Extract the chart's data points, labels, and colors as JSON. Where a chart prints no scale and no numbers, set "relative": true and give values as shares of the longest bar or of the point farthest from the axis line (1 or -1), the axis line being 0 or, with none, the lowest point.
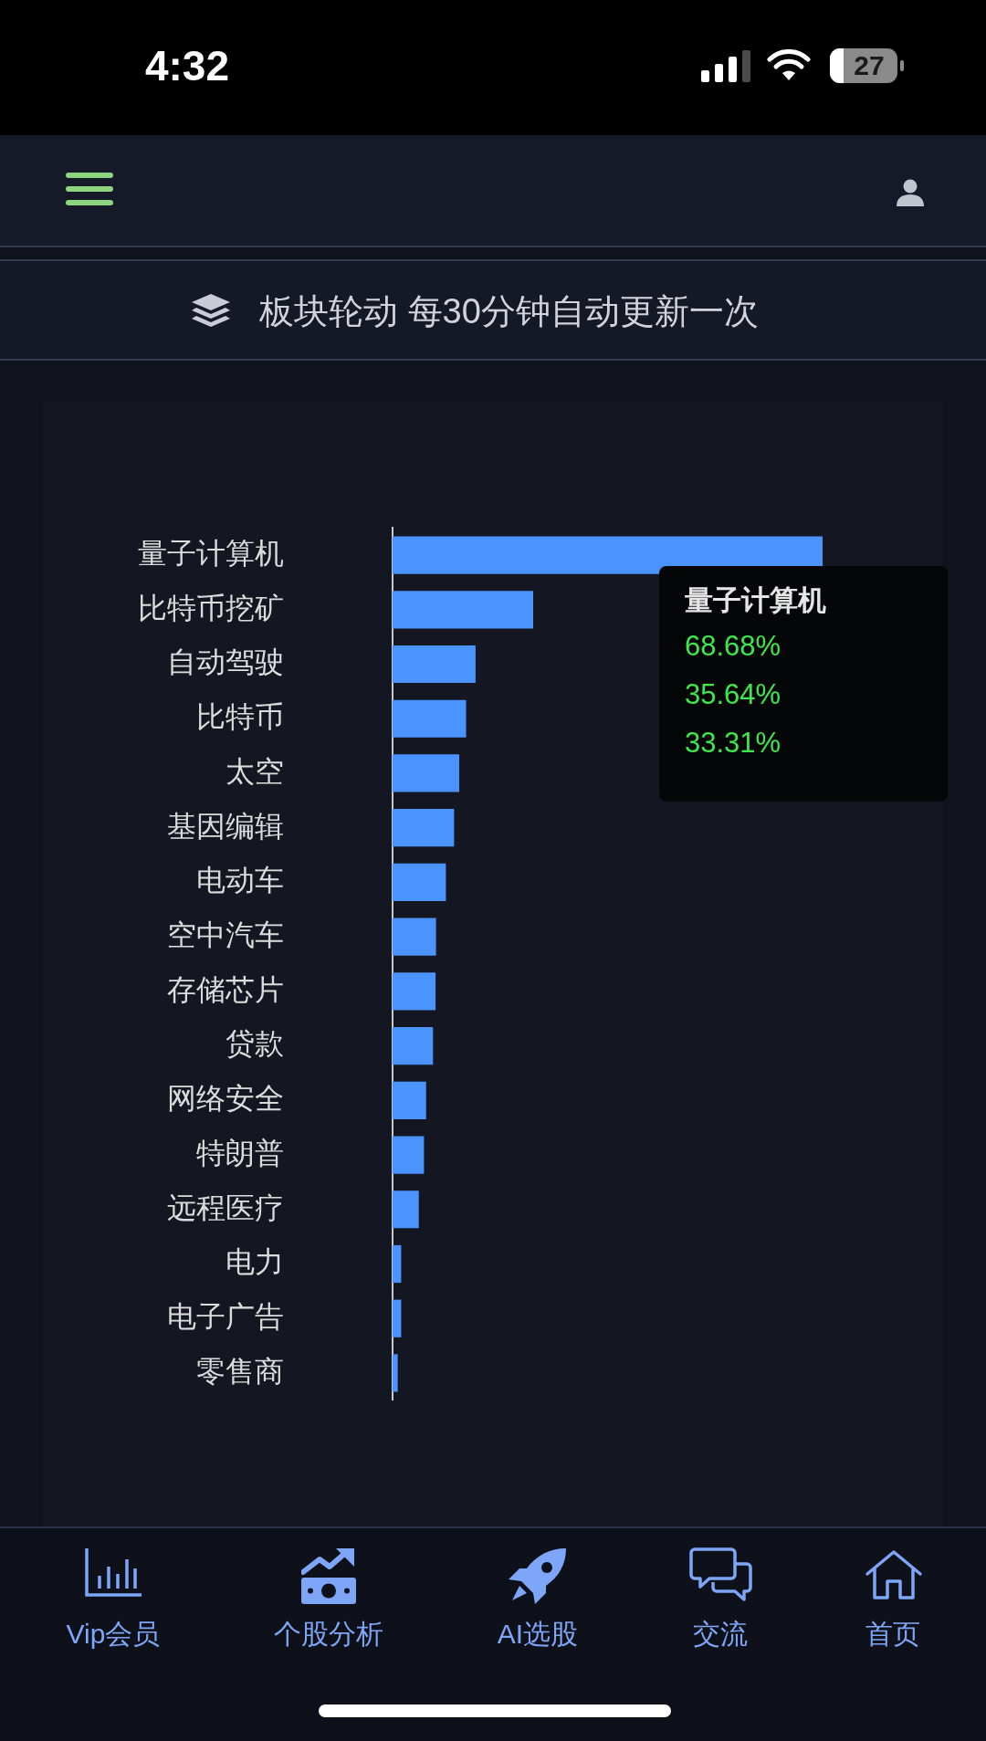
{
  "chart_data": {
    "type": "bar",
    "orientation": "horizontal",
    "relative": true,
    "title": "板块轮动 每30分钟自动更新一次",
    "categories": [
      "量子计算机",
      "比特币挖矿",
      "自动驾驶",
      "比特币",
      "太空",
      "基因编辑",
      "电动车",
      "空中汽车",
      "存储芯片",
      "贷款",
      "网络安全",
      "特朗普",
      "远程医疗",
      "电力",
      "电子广告",
      "零售商"
    ],
    "values": [
      1,
      0.327,
      0.193,
      0.171,
      0.155,
      0.143,
      0.124,
      0.101,
      0.1,
      0.094,
      0.078,
      0.073,
      0.061,
      0.02,
      0.02,
      0.012
    ],
    "color": "#4b94fd",
    "annotations": [
      "量子计算机",
      "68.68%",
      "35.64%",
      "33.31%",
      "4:32",
      "27",
      "Vip会员",
      "个股分析",
      "AI选股",
      "交流",
      "首页"
    ]
  }
}
